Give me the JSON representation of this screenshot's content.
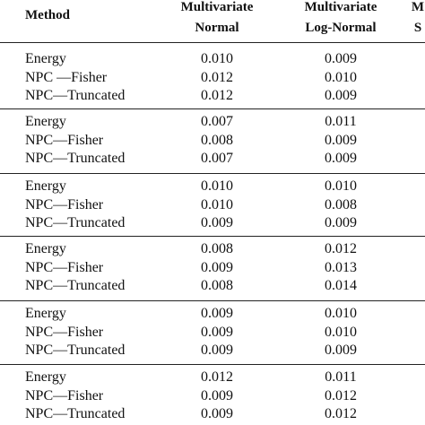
{
  "header": {
    "method": "Method",
    "columns": [
      [
        "Multivariate",
        "Normal"
      ],
      [
        "Multivariate",
        "Log-Normal"
      ],
      [
        "M",
        "S"
      ]
    ]
  },
  "groups": [
    [
      [
        "Energy",
        "0.010",
        "0.009"
      ],
      [
        "NPC —Fisher",
        "0.012",
        "0.010"
      ],
      [
        "NPC—Truncated",
        "0.012",
        "0.009"
      ]
    ],
    [
      [
        "Energy",
        "0.007",
        "0.011"
      ],
      [
        "NPC—Fisher",
        "0.008",
        "0.009"
      ],
      [
        "NPC—Truncated",
        "0.007",
        "0.009"
      ]
    ],
    [
      [
        "Energy",
        "0.010",
        "0.010"
      ],
      [
        "NPC—Fisher",
        "0.010",
        "0.008"
      ],
      [
        "NPC—Truncated",
        "0.009",
        "0.009"
      ]
    ],
    [
      [
        "Energy",
        "0.008",
        "0.012"
      ],
      [
        "NPC—Fisher",
        "0.009",
        "0.013"
      ],
      [
        "NPC—Truncated",
        "0.008",
        "0.014"
      ]
    ],
    [
      [
        "Energy",
        "0.009",
        "0.010"
      ],
      [
        "NPC—Fisher",
        "0.009",
        "0.010"
      ],
      [
        "NPC—Truncated",
        "0.009",
        "0.009"
      ]
    ],
    [
      [
        "Energy",
        "0.012",
        "0.011"
      ],
      [
        "NPC—Fisher",
        "0.009",
        "0.012"
      ],
      [
        "NPC—Truncated",
        "0.009",
        "0.012"
      ]
    ]
  ]
}
